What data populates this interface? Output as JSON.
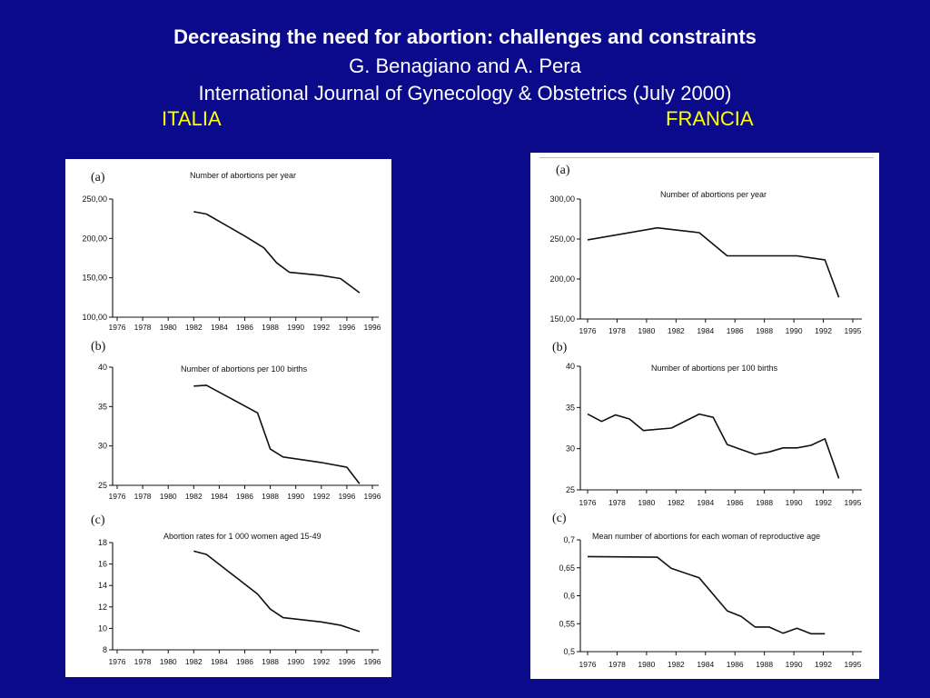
{
  "header": {
    "title": "Decreasing the need for abortion: challenges and constraints",
    "authors": "G. Benagiano and A. Pera",
    "journal": "International Journal of Gynecology & Obstetrics (July 2000)",
    "country_left": "ITALIA",
    "country_right": "FRANCIA"
  },
  "colors": {
    "background": "#0a0a8a",
    "title_text": "#ffffff",
    "country_text": "#ffff00",
    "panel": "#ffffff",
    "line": "#111111"
  },
  "chart_data": [
    {
      "type": "line",
      "country": "ITALIA",
      "panel_label": "(a)",
      "title": "Number of abortions per year",
      "x_ticks": [
        "1976",
        "1978",
        "1980",
        "1982",
        "1984",
        "1986",
        "1988",
        "1990",
        "1992",
        "1996",
        "1996"
      ],
      "y_ticks": [
        "100,00",
        "150,00",
        "200,00",
        "250,00"
      ],
      "xlim": [
        1976,
        1996
      ],
      "ylim": [
        100,
        250
      ],
      "series": [
        {
          "name": "Italia",
          "x": [
            1982,
            1983,
            1986,
            1987.5,
            1988.5,
            1989.5,
            1992,
            1993.5,
            1995
          ],
          "y": [
            234,
            231,
            203,
            188,
            169,
            157,
            153,
            149,
            131
          ]
        }
      ]
    },
    {
      "type": "line",
      "country": "ITALIA",
      "panel_label": "(b)",
      "title": "Number of abortions per 100 births",
      "x_ticks": [
        "1976",
        "1978",
        "1980",
        "1982",
        "1984",
        "1986",
        "1988",
        "1990",
        "1992",
        "1996",
        "1996"
      ],
      "y_ticks": [
        "25",
        "30",
        "35",
        "40"
      ],
      "xlim": [
        1976,
        1996
      ],
      "ylim": [
        25,
        40
      ],
      "series": [
        {
          "name": "Italia",
          "x": [
            1982,
            1983,
            1987,
            1988,
            1989,
            1992,
            1994,
            1995
          ],
          "y": [
            37.6,
            37.7,
            34.2,
            29.6,
            28.6,
            27.9,
            27.3,
            25.2
          ]
        }
      ]
    },
    {
      "type": "line",
      "country": "ITALIA",
      "panel_label": "(c)",
      "title": "Abortion rates for 1 000 women aged 15-49",
      "x_ticks": [
        "1976",
        "1978",
        "1980",
        "1982",
        "1984",
        "1986",
        "1988",
        "1990",
        "1992",
        "1996",
        "1996"
      ],
      "y_ticks": [
        "8",
        "10",
        "12",
        "14",
        "16",
        "18"
      ],
      "xlim": [
        1976,
        1996
      ],
      "ylim": [
        8,
        18
      ],
      "series": [
        {
          "name": "Italia",
          "x": [
            1982,
            1983,
            1987,
            1988,
            1989,
            1992,
            1993.5,
            1995
          ],
          "y": [
            17.2,
            16.9,
            13.2,
            11.8,
            11.0,
            10.6,
            10.3,
            9.7
          ]
        }
      ]
    },
    {
      "type": "line",
      "country": "FRANCIA",
      "panel_label": "(a)",
      "title": "Number of abortions per year",
      "x_ticks": [
        "1976",
        "1978",
        "1980",
        "1982",
        "1984",
        "1986",
        "1988",
        "1990",
        "1992",
        "1995"
      ],
      "y_ticks": [
        "150,00",
        "200,00",
        "250,00",
        "300,00"
      ],
      "xlim": [
        1976,
        1995
      ],
      "ylim": [
        150,
        300
      ],
      "series": [
        {
          "name": "Francia",
          "x": [
            1976,
            1981,
            1984,
            1986,
            1991,
            1993,
            1994
          ],
          "y": [
            249,
            264,
            258,
            229,
            229,
            224,
            177
          ]
        }
      ]
    },
    {
      "type": "line",
      "country": "FRANCIA",
      "panel_label": "(b)",
      "title": "Number of abortions per 100 births",
      "x_ticks": [
        "1976",
        "1978",
        "1980",
        "1982",
        "1984",
        "1986",
        "1988",
        "1990",
        "1992",
        "1995"
      ],
      "y_ticks": [
        "25",
        "30",
        "35",
        "40"
      ],
      "xlim": [
        1976,
        1995
      ],
      "ylim": [
        25,
        40
      ],
      "series": [
        {
          "name": "Francia",
          "x": [
            1976,
            1977,
            1978,
            1979,
            1980,
            1982,
            1984,
            1985,
            1986,
            1987,
            1988,
            1989,
            1990,
            1991,
            1992,
            1993,
            1994
          ],
          "y": [
            34.2,
            33.3,
            34.1,
            33.6,
            32.2,
            32.5,
            34.2,
            33.8,
            30.5,
            29.9,
            29.3,
            29.6,
            30.1,
            30.1,
            30.4,
            31.2,
            26.4
          ]
        }
      ]
    },
    {
      "type": "line",
      "country": "FRANCIA",
      "panel_label": "(c)",
      "title": "Mean number of abortions for each woman of reproductive age",
      "x_ticks": [
        "1976",
        "1978",
        "1980",
        "1982",
        "1984",
        "1986",
        "1988",
        "1990",
        "1992",
        "1995"
      ],
      "y_ticks": [
        "0,5",
        "0,55",
        "0,6",
        "0,65",
        "0,7"
      ],
      "xlim": [
        1976,
        1995
      ],
      "ylim": [
        0.5,
        0.7
      ],
      "series": [
        {
          "name": "Francia",
          "x": [
            1976,
            1981,
            1982,
            1984,
            1986,
            1987,
            1988,
            1989,
            1990,
            1991,
            1992,
            1993
          ],
          "y": [
            0.67,
            0.669,
            0.649,
            0.632,
            0.573,
            0.563,
            0.544,
            0.544,
            0.533,
            0.542,
            0.532,
            0.532
          ]
        }
      ]
    }
  ]
}
